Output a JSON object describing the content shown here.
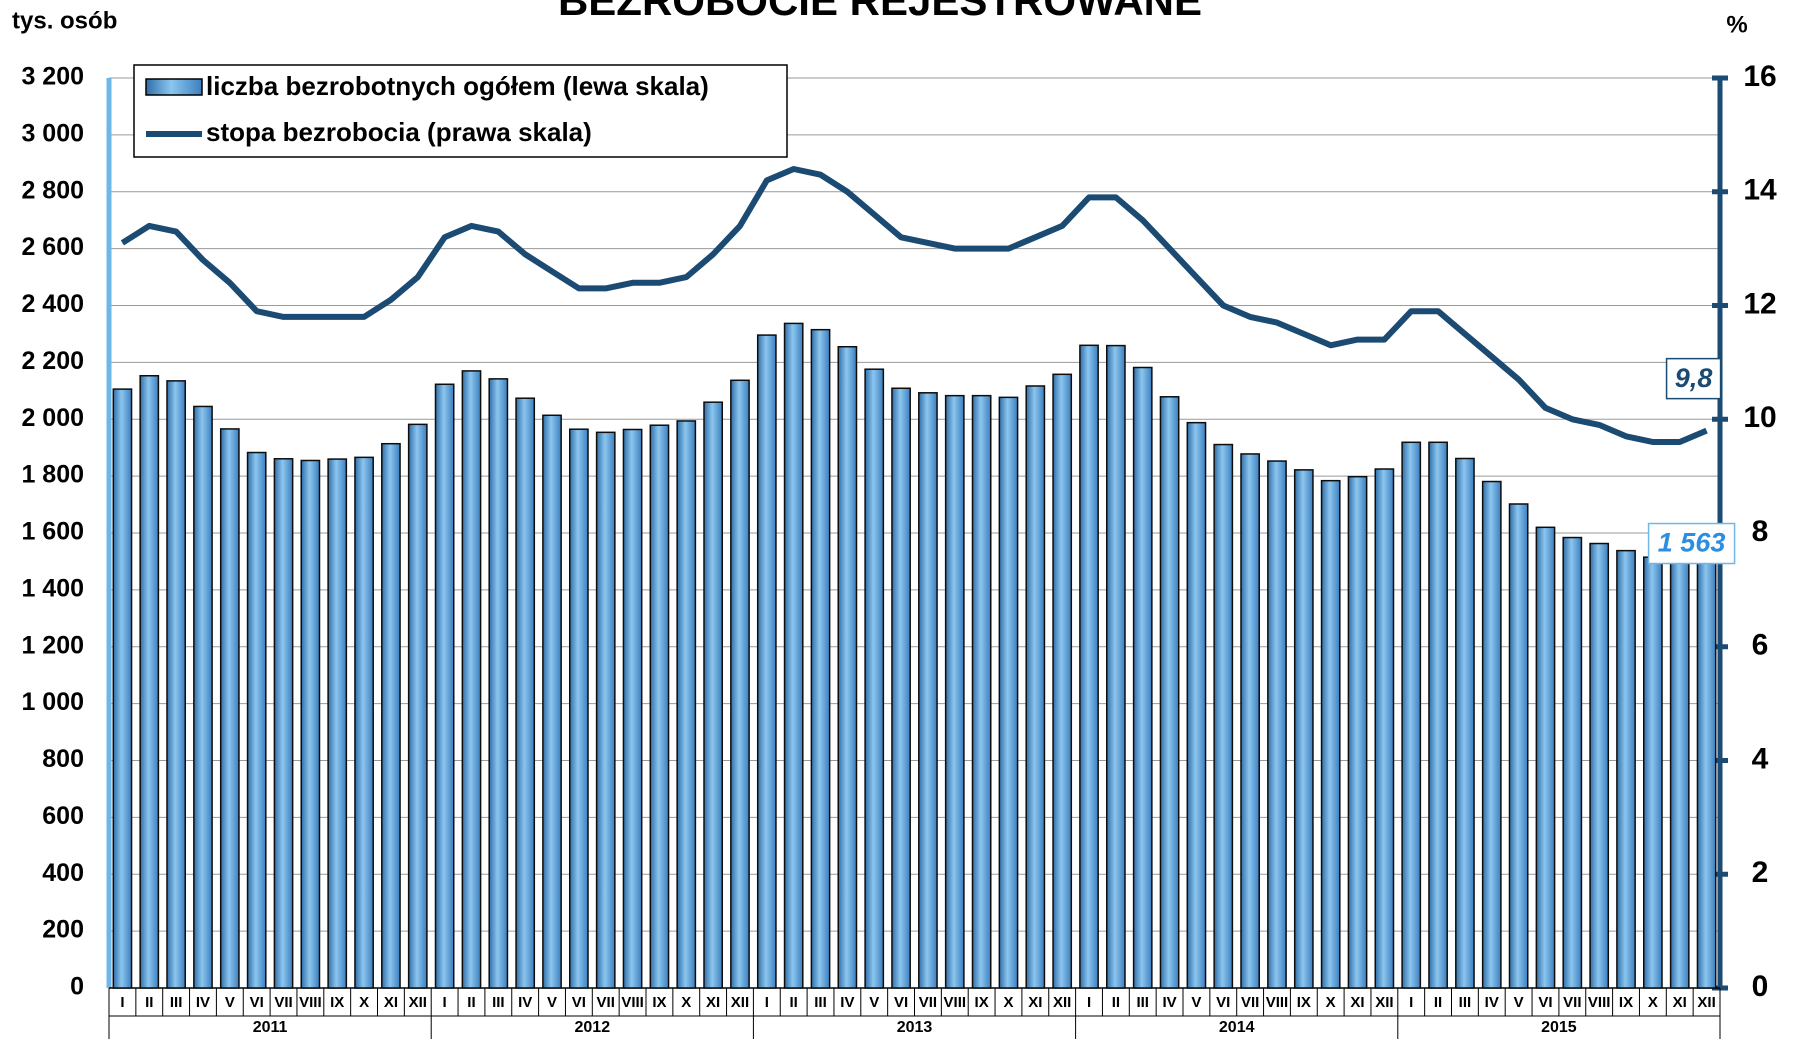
{
  "chart_data": {
    "type": "bar-line",
    "title": "BEZROBOCIE REJESTROWANE",
    "y_label": "tys. osób",
    "y2_label": "%",
    "categories": [
      "I",
      "II",
      "III",
      "IV",
      "V",
      "VI",
      "VII",
      "VIII",
      "IX",
      "X",
      "XI",
      "XII",
      "I",
      "II",
      "III",
      "IV",
      "V",
      "VI",
      "VII",
      "VIII",
      "IX",
      "X",
      "XI",
      "XII",
      "I",
      "II",
      "III",
      "IV",
      "V",
      "VI",
      "VII",
      "VIII",
      "IX",
      "X",
      "XI",
      "XII",
      "I",
      "II",
      "III",
      "IV",
      "V",
      "VI",
      "VII",
      "VIII",
      "IX",
      "X",
      "XI",
      "XII",
      "I",
      "II",
      "III",
      "IV",
      "V",
      "VI",
      "VII",
      "VIII",
      "IX",
      "X",
      "XI",
      "XII"
    ],
    "years": [
      "2011",
      "2012",
      "2013",
      "2014",
      "2015"
    ],
    "series": [
      {
        "name": "liczba bezrobotnych ogółem (lewa skala)",
        "type": "bar",
        "color": "#5aa6dc",
        "values": [
          2106,
          2153,
          2135,
          2045,
          1966,
          1883,
          1861,
          1855,
          1860,
          1866,
          1914,
          1982,
          2123,
          2170,
          2142,
          2074,
          2014,
          1965,
          1954,
          1964,
          1979,
          1994,
          2060,
          2137,
          2296,
          2337,
          2315,
          2255,
          2176,
          2109,
          2093,
          2083,
          2083,
          2077,
          2117,
          2158,
          2260,
          2259,
          2182,
          2079,
          1988,
          1911,
          1878,
          1853,
          1822,
          1784,
          1798,
          1825,
          1919,
          1919,
          1862,
          1781,
          1702,
          1620,
          1584,
          1563,
          1538,
          1515,
          1530,
          1563
        ],
        "value_labels": [
          null,
          null,
          null,
          null,
          null,
          null,
          null,
          null,
          null,
          null,
          null,
          null,
          null,
          null,
          null,
          null,
          null,
          null,
          null,
          null,
          null,
          null,
          null,
          null,
          null,
          null,
          null,
          null,
          null,
          null,
          null,
          null,
          null,
          null,
          null,
          null,
          null,
          null,
          null,
          null,
          null,
          null,
          null,
          null,
          null,
          null,
          null,
          null,
          null,
          null,
          null,
          null,
          null,
          null,
          null,
          null,
          null,
          null,
          null,
          "1 563"
        ]
      },
      {
        "name": "stopa bezrobocia (prawa skala)",
        "type": "line",
        "axis": "y2",
        "color": "#1b4a72",
        "values": [
          13.1,
          13.4,
          13.3,
          12.8,
          12.4,
          11.9,
          11.8,
          11.8,
          11.8,
          11.8,
          12.1,
          12.5,
          13.2,
          13.4,
          13.3,
          12.9,
          12.6,
          12.3,
          12.3,
          12.4,
          12.4,
          12.5,
          12.9,
          13.4,
          14.2,
          14.4,
          14.3,
          14.0,
          13.6,
          13.2,
          13.1,
          13.0,
          13.0,
          13.0,
          13.2,
          13.4,
          13.9,
          13.9,
          13.5,
          13.0,
          12.5,
          12.0,
          11.8,
          11.7,
          11.5,
          11.3,
          11.4,
          11.4,
          11.9,
          11.9,
          11.5,
          11.1,
          10.7,
          10.2,
          10.0,
          9.9,
          9.7,
          9.6,
          9.6,
          9.8
        ],
        "value_labels": [
          null,
          null,
          null,
          null,
          null,
          null,
          null,
          null,
          null,
          null,
          null,
          null,
          null,
          null,
          null,
          null,
          null,
          null,
          null,
          null,
          null,
          null,
          null,
          null,
          null,
          null,
          null,
          null,
          null,
          null,
          null,
          null,
          null,
          null,
          null,
          null,
          null,
          null,
          null,
          null,
          null,
          null,
          null,
          null,
          null,
          null,
          null,
          null,
          null,
          null,
          null,
          null,
          null,
          null,
          null,
          null,
          null,
          null,
          null,
          "9,8"
        ]
      }
    ],
    "ylim": [
      0,
      3200
    ],
    "yticks": [
      0,
      200,
      400,
      600,
      800,
      {
        "value": 1000,
        "label": "1 000"
      },
      {
        "value": 1200,
        "label": "1 200"
      },
      {
        "value": 1400,
        "label": "1 400"
      },
      {
        "value": 1600,
        "label": "1 600"
      },
      {
        "value": 1800,
        "label": "1 800"
      },
      {
        "value": 2000,
        "label": "2 000"
      },
      {
        "value": 2200,
        "label": "2 200"
      },
      {
        "value": 2400,
        "label": "2 400"
      },
      {
        "value": 2600,
        "label": "2 600"
      },
      {
        "value": 2800,
        "label": "2 800"
      },
      {
        "value": 3000,
        "label": "3 000"
      },
      {
        "value": 3200,
        "label": "3 200"
      }
    ],
    "y2lim": [
      0,
      16
    ],
    "y2ticks": [
      0,
      2,
      4,
      6,
      8,
      10,
      12,
      14,
      16
    ],
    "grid": true
  }
}
